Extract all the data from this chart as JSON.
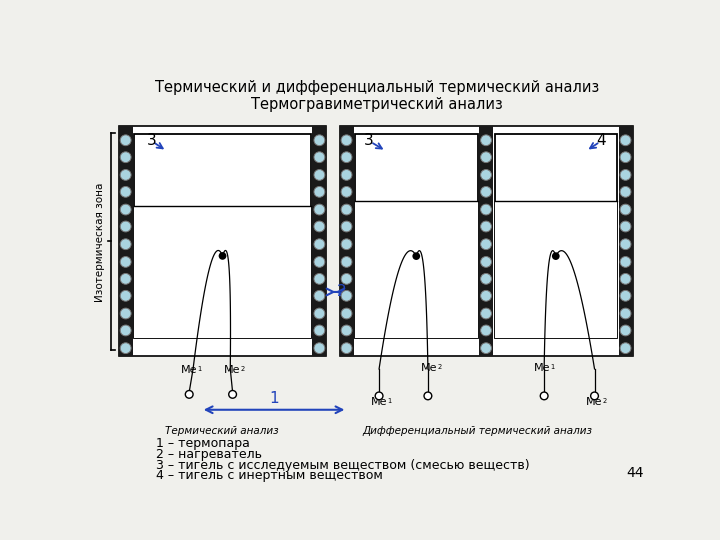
{
  "title1": "Термический и дифференциальный термический анализ",
  "title2": "Термогравиметрический анализ",
  "side_label": "Изотермическая зона",
  "label_thermal": "Термический анализ",
  "label_differential": "Дифференциальный термический анализ",
  "legend_items": [
    "1 – термопара",
    "2 – нагреватель",
    "3 – тигель с исследуемым веществом (смесью веществ)",
    "4 – тигель с инертным веществом"
  ],
  "page_number": "44",
  "bg_color": "#f0f0ec",
  "blue_arrow_color": "#2244bb",
  "circle_fill": "#aad4e0",
  "circle_edge": "#777777",
  "dark_col_color": "#1a1a1a"
}
